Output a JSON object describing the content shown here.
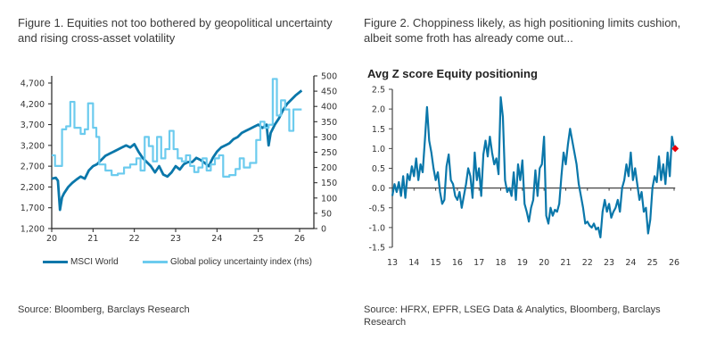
{
  "figure1": {
    "title": "Figure 1. Equities not too bothered by geopolitical uncertainty and rising cross-asset volatility",
    "source": "Source: Bloomberg, Barclays Research",
    "legend": [
      {
        "label": "MSCI World",
        "color": "#0a77aa"
      },
      {
        "label": "Global policy uncertainty index (rhs)",
        "color": "#6ccbee"
      }
    ]
  },
  "figure2": {
    "title": "Figure 2. Choppiness likely, as high positioning limits cushion, albeit some froth has already come out...",
    "subtitle": "Avg Z score Equity positioning",
    "source": "Source: HFRX, EPFR, LSEG Data & Analytics, Bloomberg, Barclays Research"
  },
  "chart_data": [
    {
      "type": "line",
      "title": "Figure 1. Equities not too bothered by geopolitical uncertainty and rising cross-asset volatility",
      "xlabel": "",
      "ylabel": "",
      "x_ticks": [
        "20",
        "21",
        "22",
        "23",
        "24",
        "25",
        "26"
      ],
      "xlim": [
        2020,
        2026.1
      ],
      "y_ticks": [
        "1,200",
        "1,700",
        "2,200",
        "2,700",
        "3,200",
        "3,700",
        "4,200",
        "4,700"
      ],
      "ylim": [
        1200,
        4950
      ],
      "y2_ticks": [
        "0",
        "50",
        "100",
        "150",
        "200",
        "250",
        "300",
        "350",
        "400",
        "450",
        "500"
      ],
      "y2lim": [
        0,
        500
      ],
      "legend_position": "bottom",
      "series": [
        {
          "name": "MSCI World",
          "axis": "left",
          "color": "#0a77aa",
          "x": [
            2020.0,
            2020.1,
            2020.15,
            2020.2,
            2020.25,
            2020.3,
            2020.4,
            2020.5,
            2020.6,
            2020.7,
            2020.8,
            2020.9,
            2021.0,
            2021.1,
            2021.2,
            2021.3,
            2021.4,
            2021.5,
            2021.6,
            2021.7,
            2021.8,
            2021.9,
            2022.0,
            2022.1,
            2022.2,
            2022.3,
            2022.4,
            2022.5,
            2022.6,
            2022.7,
            2022.8,
            2022.9,
            2023.0,
            2023.1,
            2023.2,
            2023.3,
            2023.4,
            2023.5,
            2023.6,
            2023.7,
            2023.8,
            2023.9,
            2024.0,
            2024.1,
            2024.2,
            2024.3,
            2024.4,
            2024.5,
            2024.6,
            2024.7,
            2024.8,
            2024.9,
            2025.0,
            2025.1,
            2025.2,
            2025.25,
            2025.3,
            2025.4,
            2025.5,
            2025.6,
            2025.7,
            2025.8,
            2025.9,
            2026.0,
            2026.05
          ],
          "values": [
            2400,
            2420,
            2350,
            1650,
            1950,
            2050,
            2200,
            2300,
            2380,
            2450,
            2400,
            2600,
            2700,
            2750,
            2850,
            2950,
            3000,
            3050,
            3100,
            3150,
            3200,
            3150,
            3230,
            3050,
            2900,
            2800,
            2700,
            2550,
            2700,
            2500,
            2450,
            2550,
            2700,
            2620,
            2750,
            2800,
            2800,
            2900,
            2850,
            2780,
            2700,
            2900,
            3050,
            3150,
            3200,
            3250,
            3350,
            3400,
            3500,
            3550,
            3600,
            3650,
            3700,
            3620,
            3700,
            3200,
            3500,
            3700,
            3850,
            4050,
            4200,
            4300,
            4400,
            4480,
            4520
          ]
        },
        {
          "name": "Global policy uncertainty index (rhs)",
          "axis": "right",
          "color": "#6ccbee",
          "step": true,
          "x": [
            2020.0,
            2020.08,
            2020.25,
            2020.35,
            2020.45,
            2020.55,
            2020.7,
            2020.8,
            2020.88,
            2021.0,
            2021.08,
            2021.15,
            2021.3,
            2021.45,
            2021.6,
            2021.75,
            2021.9,
            2022.05,
            2022.15,
            2022.25,
            2022.35,
            2022.45,
            2022.55,
            2022.65,
            2022.75,
            2022.85,
            2022.95,
            2023.05,
            2023.15,
            2023.25,
            2023.35,
            2023.45,
            2023.55,
            2023.65,
            2023.75,
            2023.85,
            2023.95,
            2024.05,
            2024.15,
            2024.3,
            2024.45,
            2024.55,
            2024.65,
            2024.8,
            2024.95,
            2025.05,
            2025.15,
            2025.25,
            2025.35,
            2025.45,
            2025.55,
            2025.65,
            2025.75,
            2025.85,
            2026.05
          ],
          "values": [
            240,
            205,
            325,
            335,
            415,
            330,
            310,
            325,
            410,
            330,
            300,
            210,
            190,
            175,
            180,
            200,
            210,
            230,
            190,
            300,
            270,
            220,
            300,
            230,
            260,
            320,
            260,
            230,
            220,
            240,
            205,
            185,
            200,
            230,
            190,
            210,
            230,
            240,
            170,
            175,
            195,
            230,
            200,
            215,
            290,
            350,
            330,
            340,
            490,
            370,
            420,
            390,
            320,
            390,
            390
          ]
        }
      ]
    },
    {
      "type": "line",
      "title": "Avg Z score Equity positioning",
      "xlabel": "",
      "ylabel": "",
      "x_ticks": [
        "13",
        "14",
        "15",
        "16",
        "17",
        "18",
        "19",
        "20",
        "21",
        "22",
        "23",
        "24",
        "25",
        "26"
      ],
      "xlim": [
        2013,
        2026
      ],
      "y_ticks": [
        "-1.5",
        "-1.0",
        "-0.5",
        "0.0",
        "0.5",
        "1.0",
        "1.5",
        "2.0",
        "2.5"
      ],
      "ylim": [
        -1.5,
        2.5
      ],
      "grid": false,
      "zero_line": true,
      "series": [
        {
          "name": "Avg Z score Equity positioning",
          "color": "#0a77aa",
          "x": [
            2013.0,
            2013.1,
            2013.2,
            2013.3,
            2013.4,
            2013.5,
            2013.6,
            2013.7,
            2013.8,
            2013.9,
            2014.0,
            2014.1,
            2014.2,
            2014.3,
            2014.4,
            2014.5,
            2014.6,
            2014.7,
            2014.8,
            2014.9,
            2015.0,
            2015.1,
            2015.2,
            2015.3,
            2015.4,
            2015.5,
            2015.6,
            2015.7,
            2015.8,
            2015.9,
            2016.0,
            2016.1,
            2016.2,
            2016.3,
            2016.4,
            2016.5,
            2016.6,
            2016.7,
            2016.8,
            2016.9,
            2017.0,
            2017.1,
            2017.2,
            2017.3,
            2017.4,
            2017.5,
            2017.6,
            2017.7,
            2017.8,
            2017.9,
            2018.0,
            2018.1,
            2018.2,
            2018.3,
            2018.4,
            2018.5,
            2018.6,
            2018.7,
            2018.8,
            2018.9,
            2019.0,
            2019.1,
            2019.2,
            2019.3,
            2019.4,
            2019.5,
            2019.6,
            2019.7,
            2019.8,
            2019.9,
            2020.0,
            2020.1,
            2020.2,
            2020.3,
            2020.4,
            2020.5,
            2020.6,
            2020.7,
            2020.8,
            2020.9,
            2021.0,
            2021.1,
            2021.2,
            2021.3,
            2021.4,
            2021.5,
            2021.6,
            2021.7,
            2021.8,
            2021.9,
            2022.0,
            2022.1,
            2022.2,
            2022.3,
            2022.4,
            2022.5,
            2022.6,
            2022.7,
            2022.8,
            2022.9,
            2023.0,
            2023.1,
            2023.2,
            2023.3,
            2023.4,
            2023.5,
            2023.6,
            2023.7,
            2023.8,
            2023.9,
            2024.0,
            2024.1,
            2024.2,
            2024.3,
            2024.4,
            2024.5,
            2024.6,
            2024.7,
            2024.8,
            2024.9,
            2025.0,
            2025.1,
            2025.2,
            2025.3,
            2025.4,
            2025.5,
            2025.6,
            2025.7,
            2025.8,
            2025.9,
            2026.0,
            2026.05
          ],
          "values": [
            -0.2,
            0.1,
            -0.1,
            0.15,
            -0.2,
            0.3,
            -0.25,
            0.35,
            0.2,
            0.55,
            0.3,
            0.75,
            0.2,
            0.6,
            0.4,
            1.2,
            2.05,
            1.2,
            0.9,
            0.5,
            0.2,
            0.4,
            -0.1,
            -0.4,
            -0.3,
            0.55,
            0.85,
            0.2,
            0.1,
            -0.2,
            -0.3,
            -0.1,
            -0.5,
            -0.2,
            0.1,
            0.5,
            0.3,
            -0.25,
            0.9,
            0.2,
            0.5,
            -0.2,
            0.85,
            1.2,
            0.8,
            1.3,
            0.9,
            0.6,
            0.75,
            0.35,
            2.3,
            1.8,
            0.2,
            -0.1,
            0.0,
            -0.2,
            0.4,
            -0.3,
            0.6,
            0.2,
            0.7,
            -0.4,
            -0.6,
            -0.85,
            -0.5,
            -0.3,
            0.45,
            -0.2,
            0.5,
            0.6,
            1.3,
            -0.7,
            -0.9,
            -0.5,
            -0.7,
            -0.55,
            -0.6,
            -0.4,
            0.3,
            0.9,
            0.6,
            1.1,
            1.5,
            1.2,
            0.9,
            0.6,
            0.1,
            -0.2,
            -0.5,
            -0.9,
            -0.85,
            -0.95,
            -1.0,
            -0.9,
            -1.05,
            -1.0,
            -1.25,
            -0.6,
            -0.3,
            -0.6,
            -0.4,
            -0.75,
            -0.6,
            -0.5,
            -0.3,
            -0.6,
            0.0,
            0.2,
            0.6,
            0.3,
            0.9,
            0.2,
            0.5,
            0.1,
            -0.3,
            -0.1,
            -0.6,
            -0.5,
            -1.15,
            -0.8,
            0.0,
            0.3,
            0.15,
            0.8,
            0.2,
            0.6,
            0.1,
            0.9,
            0.3,
            1.3,
            1.0,
            1.0
          ]
        }
      ],
      "annotations": [
        {
          "type": "marker",
          "x": 2026.05,
          "y": 1.0,
          "color": "#e8000b"
        }
      ]
    }
  ]
}
